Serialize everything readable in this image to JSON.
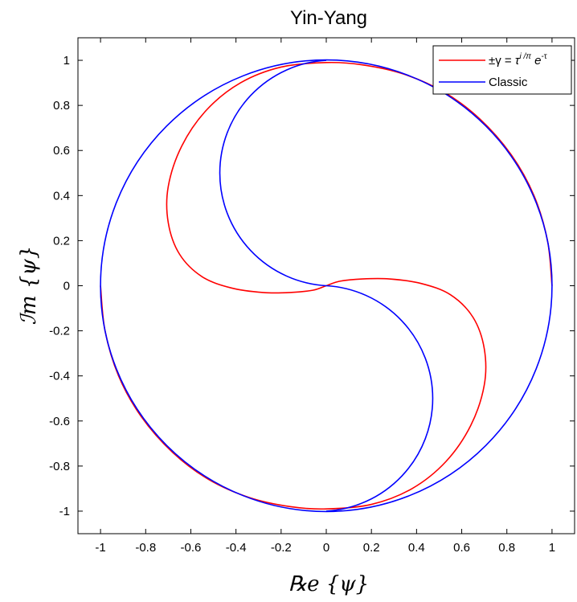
{
  "chart_data": {
    "type": "line",
    "title": "Yin-Yang",
    "xlabel": "℞e {ψ}",
    "ylabel": "ℐm {ψ}",
    "xlim": [
      -1.1,
      1.1
    ],
    "ylim": [
      -1.1,
      1.1
    ],
    "x_ticks": [
      -1,
      -0.8,
      -0.6,
      -0.4,
      -0.2,
      0,
      0.2,
      0.4,
      0.6,
      0.8,
      1
    ],
    "y_ticks": [
      -1,
      -0.8,
      -0.6,
      -0.4,
      -0.2,
      0,
      0.2,
      0.4,
      0.6,
      0.8,
      1
    ],
    "x_tick_labels": [
      "-1",
      "-0.8",
      "-0.6",
      "-0.4",
      "-0.2",
      "0",
      "0.2",
      "0.4",
      "0.6",
      "0.8",
      "1"
    ],
    "y_tick_labels": [
      "-1",
      "-0.8",
      "-0.6",
      "-0.4",
      "-0.2",
      "0",
      "0.2",
      "0.4",
      "0.6",
      "0.8",
      "1"
    ],
    "grid": false,
    "legend_position": "top-right",
    "series": [
      {
        "name": "±γ = τ i/π e-τ",
        "legend_parts": {
          "pm_gamma": "±γ = ",
          "tau": "τ",
          "exp1": "i /π",
          "e": " e",
          "exp2": "-τ"
        },
        "color": "#ff0000",
        "x": [
          1.0,
          0.98,
          0.92,
          0.82,
          0.68,
          0.52,
          0.34,
          0.16,
          0.0,
          -0.2,
          -0.38,
          -0.53,
          -0.64,
          -0.7,
          -0.7,
          -0.65,
          -0.55,
          -0.42,
          -0.28,
          -0.16,
          -0.06,
          0.0,
          0.06,
          0.16,
          0.28,
          0.42,
          0.55,
          0.65,
          0.7,
          0.7,
          0.64,
          0.53,
          0.38,
          0.2,
          0.0,
          -0.16,
          -0.34,
          -0.52,
          -0.68,
          -0.82,
          -0.92,
          -0.98,
          -1.0
        ],
        "y": [
          0.0,
          0.2,
          0.4,
          0.58,
          0.74,
          0.86,
          0.94,
          0.98,
          0.99,
          0.97,
          0.9,
          0.78,
          0.62,
          0.44,
          0.28,
          0.14,
          0.04,
          -0.01,
          -0.03,
          -0.03,
          -0.02,
          0.0,
          0.02,
          0.03,
          0.03,
          0.01,
          -0.04,
          -0.14,
          -0.28,
          -0.44,
          -0.62,
          -0.78,
          -0.9,
          -0.97,
          -0.99,
          -0.98,
          -0.94,
          -0.86,
          -0.74,
          -0.58,
          -0.4,
          -0.2,
          0.0
        ]
      },
      {
        "name": "Classic",
        "color": "#0000ff",
        "outer_circle": {
          "cx": 0,
          "cy": 0,
          "r": 1
        },
        "inner_semicircles": [
          {
            "cx": 0.0,
            "cy": 0.5,
            "r": 0.5,
            "from": "top (0,1)",
            "to": "center (0,0)",
            "side": "left"
          },
          {
            "cx": 0.0,
            "cy": -0.5,
            "r": 0.5,
            "from": "center (0,0)",
            "to": "bottom (0,-1)",
            "side": "right"
          }
        ]
      }
    ]
  }
}
